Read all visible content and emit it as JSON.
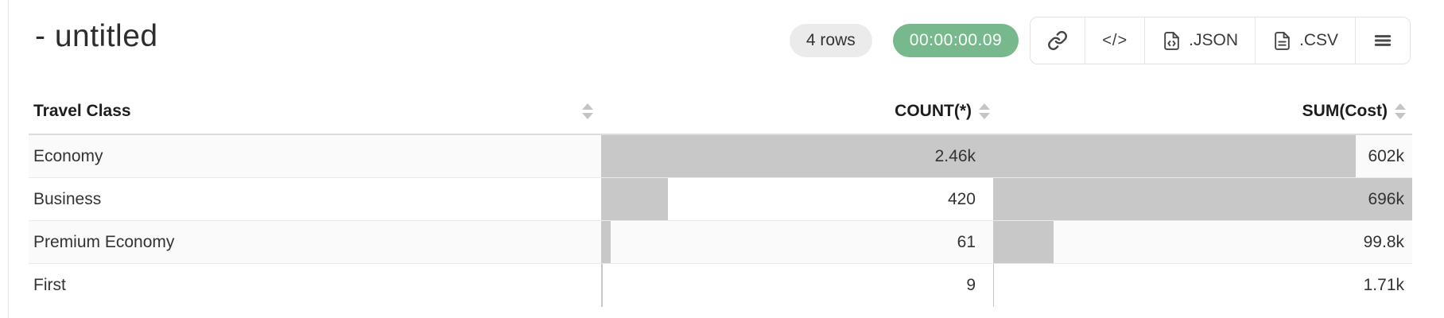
{
  "header": {
    "title": "- untitled",
    "rows_badge": "4 rows",
    "timer_badge": "00:00:00.09",
    "buttons": {
      "code_label": "</>",
      "json_label": ".JSON",
      "csv_label": ".CSV"
    },
    "icons": [
      "link-icon",
      "code-icon",
      "file-code-icon",
      "file-text-icon",
      "menu-icon"
    ]
  },
  "colors": {
    "timer_badge_bg": "#77b98c",
    "rows_badge_bg": "#ebebeb",
    "bar_fill": "#c8c8c8",
    "zebra_row_bg": "#fafafa",
    "table_border": "#dcdcdc"
  },
  "table": {
    "columns": [
      {
        "label": "Travel Class",
        "align": "left",
        "sortable": true
      },
      {
        "label": "COUNT(*)",
        "align": "right",
        "sortable": true
      },
      {
        "label": "SUM(Cost)",
        "align": "right",
        "sortable": true
      }
    ],
    "count_max": 2460,
    "sum_max": 696000,
    "rows": [
      {
        "travel_class": "Economy",
        "count_label": "2.46k",
        "count_value": 2460,
        "sum_label": "602k",
        "sum_value": 602000
      },
      {
        "travel_class": "Business",
        "count_label": "420",
        "count_value": 420,
        "sum_label": "696k",
        "sum_value": 696000
      },
      {
        "travel_class": "Premium Economy",
        "count_label": "61",
        "count_value": 61,
        "sum_label": "99.8k",
        "sum_value": 99800
      },
      {
        "travel_class": "First",
        "count_label": "9",
        "count_value": 9,
        "sum_label": "1.71k",
        "sum_value": 1710
      }
    ]
  },
  "chart_data": {
    "type": "table",
    "title": "- untitled query result",
    "categories": [
      "Economy",
      "Business",
      "Premium Economy",
      "First"
    ],
    "series": [
      {
        "name": "COUNT(*)",
        "values": [
          2460,
          420,
          61,
          9
        ]
      },
      {
        "name": "SUM(Cost)",
        "values": [
          602000,
          696000,
          99800,
          1710
        ]
      }
    ],
    "legend_position": "none",
    "grid": false
  }
}
